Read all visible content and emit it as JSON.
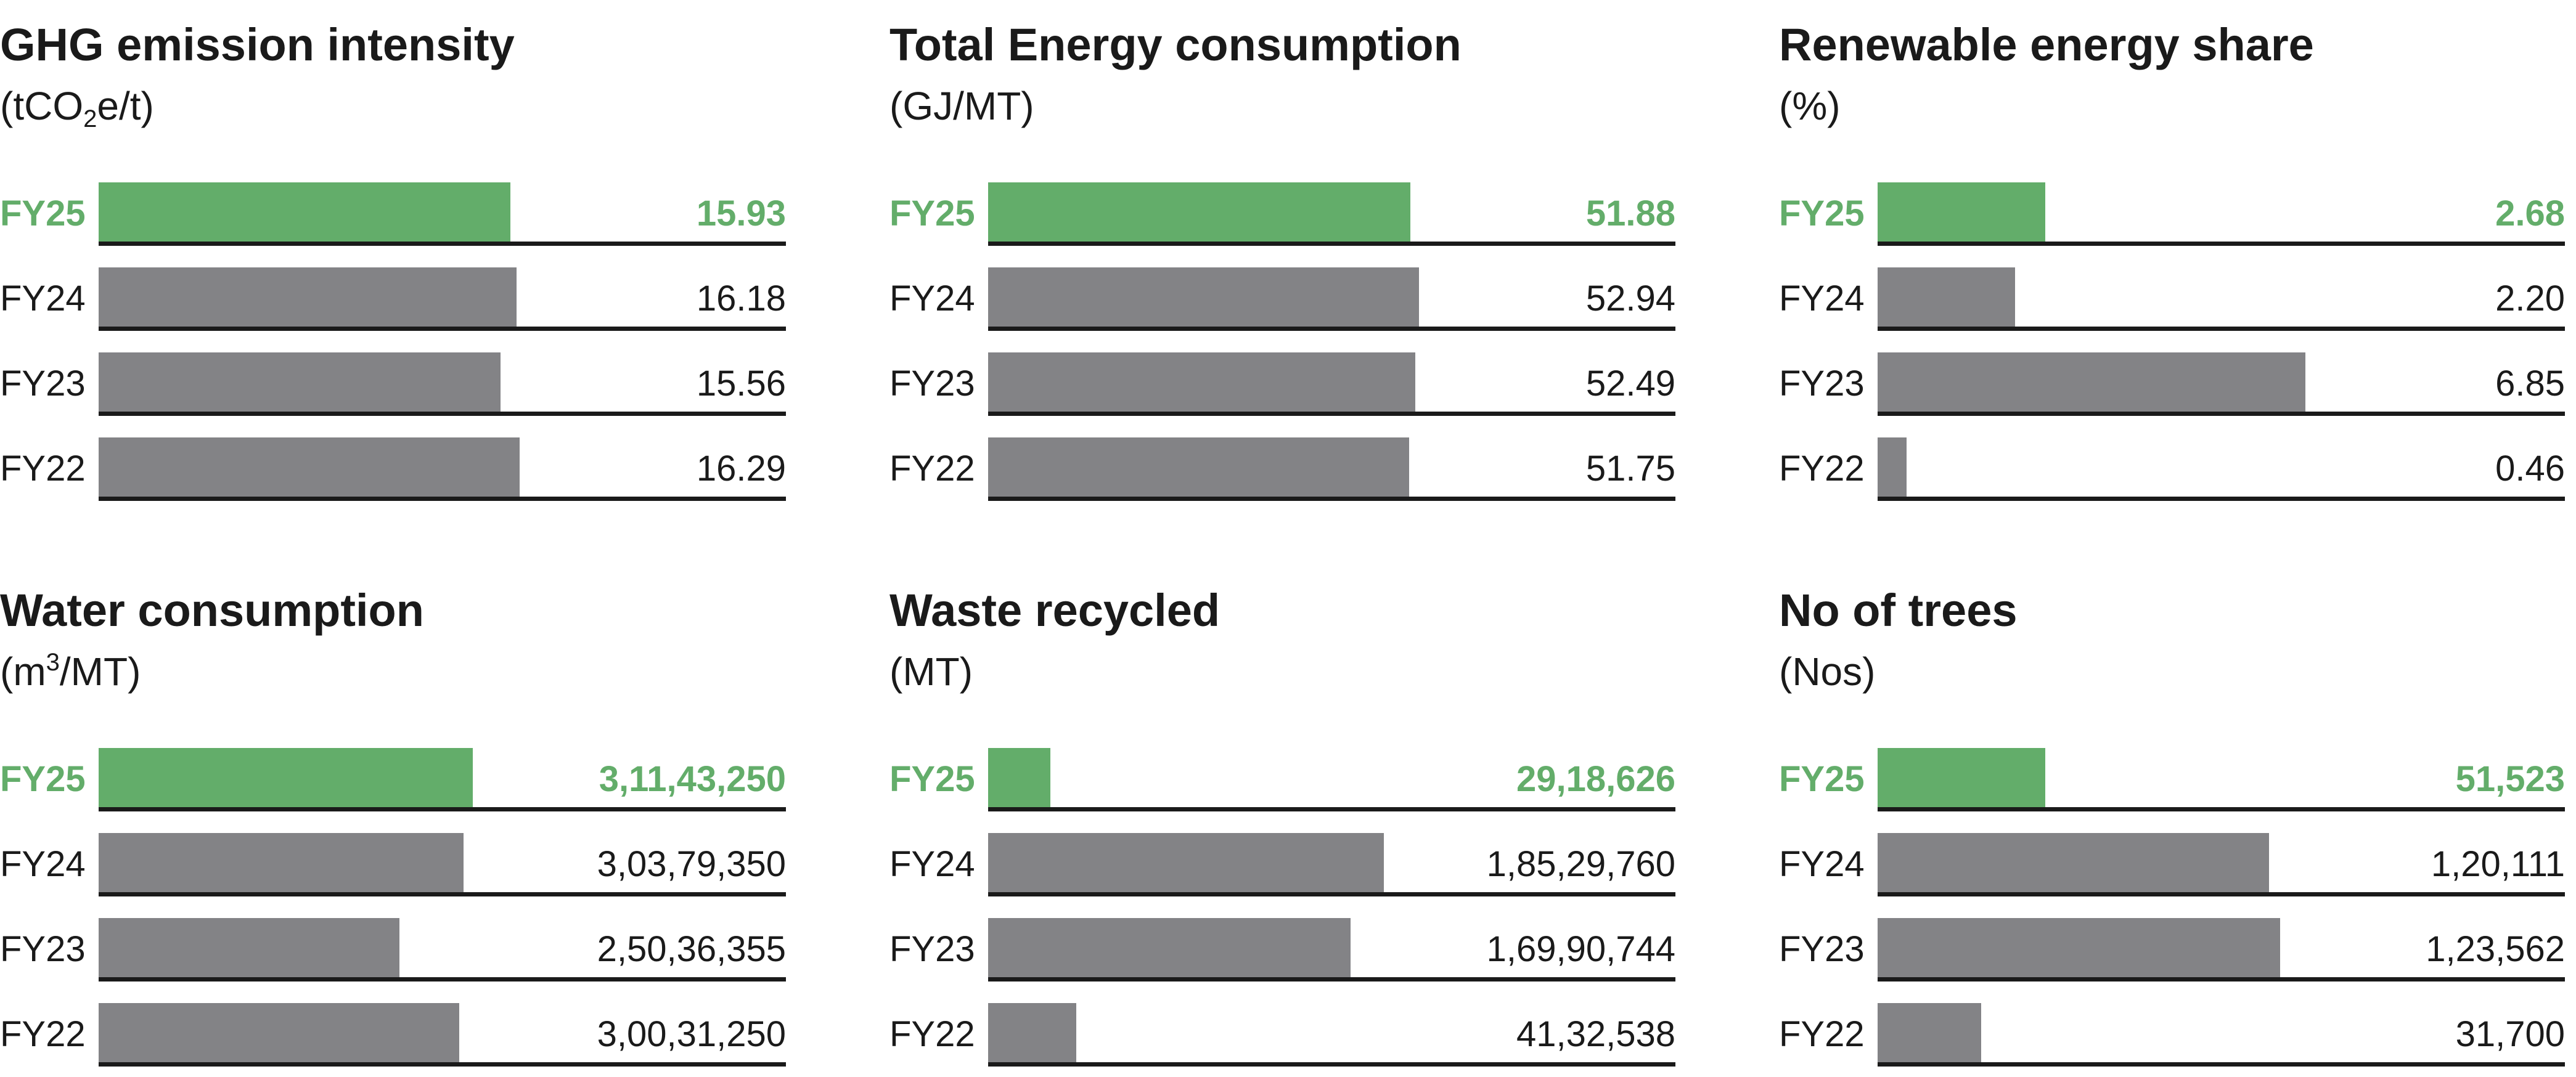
{
  "chart_data": [
    {
      "type": "bar",
      "title": "GHG emission intensity",
      "unit_pre": "(tCO",
      "unit_script": "2",
      "unit_post": "e/t)",
      "unit_script_type": "sub",
      "categories": [
        "FY25",
        "FY24",
        "FY23",
        "FY22"
      ],
      "values": [
        15.93,
        16.18,
        15.56,
        16.29
      ],
      "labels": [
        "15.93",
        "16.18",
        "15.56",
        "16.29"
      ],
      "xlim": [
        0,
        26.6
      ],
      "highlight": "FY25",
      "colors": {
        "highlight": "#63ad6a",
        "default": "#838386"
      }
    },
    {
      "type": "bar",
      "title": "Total Energy consumption",
      "unit_pre": "(GJ/MT)",
      "unit_script": "",
      "unit_post": "",
      "unit_script_type": "",
      "categories": [
        "FY25",
        "FY24",
        "FY23",
        "FY22"
      ],
      "values": [
        51.88,
        52.94,
        52.49,
        51.75
      ],
      "labels": [
        "51.88",
        "52.94",
        "52.49",
        "51.75"
      ],
      "xlim": [
        0,
        84.5
      ],
      "highlight": "FY25",
      "colors": {
        "highlight": "#63ad6a",
        "default": "#838386"
      }
    },
    {
      "type": "bar",
      "title": "Renewable energy share",
      "unit_pre": "(%)",
      "unit_script": "",
      "unit_post": "",
      "unit_script_type": "",
      "categories": [
        "FY25",
        "FY24",
        "FY23",
        "FY22"
      ],
      "values": [
        2.68,
        2.2,
        6.85,
        0.46
      ],
      "labels": [
        "2.68",
        "2.20",
        "6.85",
        "0.46"
      ],
      "xlim": [
        0,
        11.0
      ],
      "highlight": "FY25",
      "colors": {
        "highlight": "#63ad6a",
        "default": "#838386"
      }
    },
    {
      "type": "bar",
      "title": "Water consumption",
      "unit_pre": "(m",
      "unit_script": "3",
      "unit_post": "/MT)",
      "unit_script_type": "sup",
      "categories": [
        "FY25",
        "FY24",
        "FY23",
        "FY22"
      ],
      "values": [
        31143250,
        30379350,
        25036355,
        30031250
      ],
      "labels": [
        "3,11,43,250",
        "3,03,79,350",
        "2,50,36,355",
        "3,00,31,250"
      ],
      "xlim": [
        0,
        57200000
      ],
      "highlight": "FY25",
      "colors": {
        "highlight": "#63ad6a",
        "default": "#838386"
      }
    },
    {
      "type": "bar",
      "title": "Waste recycled",
      "unit_pre": "(MT)",
      "unit_script": "",
      "unit_post": "",
      "unit_script_type": "",
      "categories": [
        "FY25",
        "FY24",
        "FY23",
        "FY22"
      ],
      "values": [
        2918626,
        18529760,
        16990744,
        4132538
      ],
      "labels": [
        "29,18,626",
        "1,85,29,760",
        "1,69,90,744",
        "41,32,538"
      ],
      "xlim": [
        0,
        32200000
      ],
      "highlight": "FY25",
      "colors": {
        "highlight": "#63ad6a",
        "default": "#838386"
      }
    },
    {
      "type": "bar",
      "title": "No of trees",
      "unit_pre": "(Nos)",
      "unit_script": "",
      "unit_post": "",
      "unit_script_type": "",
      "categories": [
        "FY25",
        "FY24",
        "FY23",
        "FY22"
      ],
      "values": [
        51523,
        120111,
        123562,
        31700
      ],
      "labels": [
        "51,523",
        "1,20,111",
        "1,23,562",
        "31,700"
      ],
      "xlim": [
        0,
        211000
      ],
      "highlight": "FY25",
      "colors": {
        "highlight": "#63ad6a",
        "default": "#838386"
      }
    }
  ]
}
